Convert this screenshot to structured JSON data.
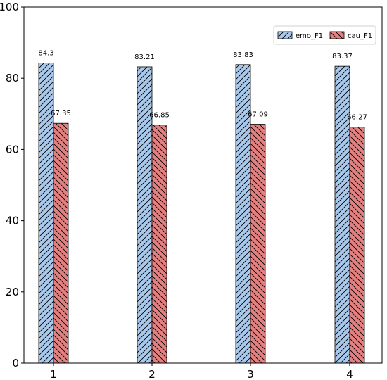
{
  "chart_data": {
    "type": "bar",
    "title": "",
    "xlabel": "",
    "ylabel": "",
    "categories": [
      "1",
      "2",
      "3",
      "4"
    ],
    "series": [
      {
        "name": "emo_F1",
        "values": [
          84.3,
          83.21,
          83.83,
          83.37
        ],
        "value_labels": [
          "84.3",
          "83.21",
          "83.83",
          "83.37"
        ],
        "color": "#a9c9ec",
        "hatch": "forward-diagonal"
      },
      {
        "name": "cau_F1",
        "values": [
          67.35,
          66.85,
          67.09,
          66.27
        ],
        "value_labels": [
          "67.35",
          "66.85",
          "67.09",
          "66.27"
        ],
        "color": "#e58080",
        "hatch": "back-diagonal"
      }
    ],
    "ylim": [
      0,
      100
    ],
    "yticks": [
      0,
      20,
      40,
      60,
      80,
      100
    ],
    "ytick_labels": [
      "0",
      "20",
      "40",
      "60",
      "80",
      "100"
    ],
    "grid": false,
    "legend_position": "top-right"
  }
}
